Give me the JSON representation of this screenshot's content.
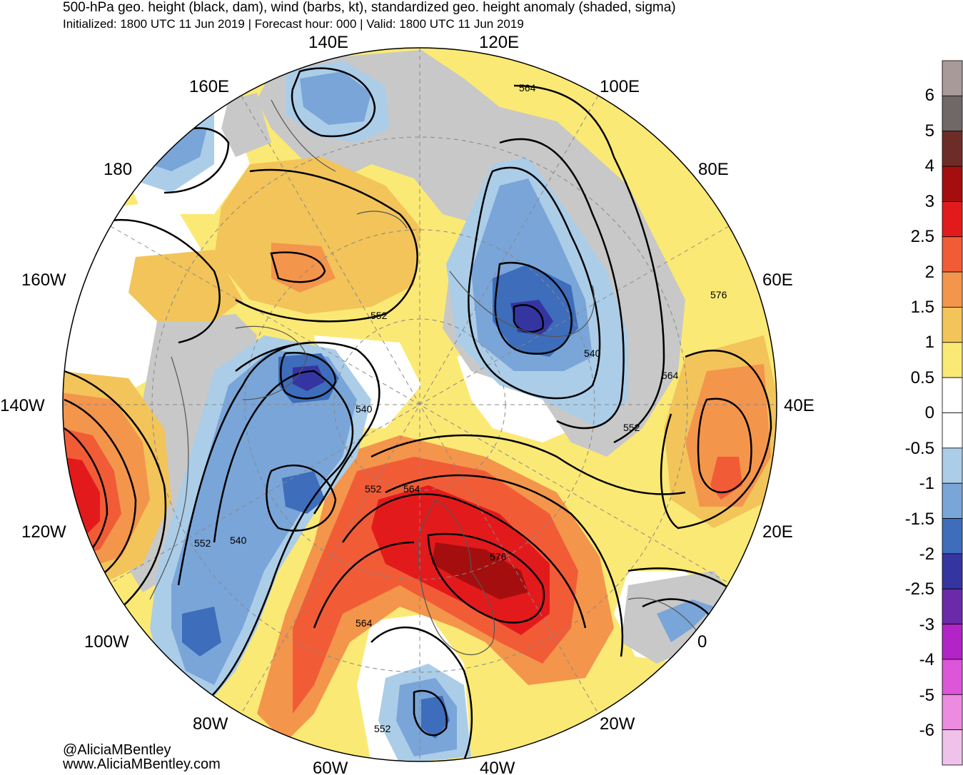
{
  "header": {
    "title": "500-hPa geo. height (black, dam), wind (barbs, kt), standardized geo. height anomaly (shaded, sigma)",
    "subtitle": "Initialized: 1800 UTC 11 Jun 2019 | Forecast hour: 000 | Valid: 1800 UTC 11 Jun 2019"
  },
  "map": {
    "projection": "north polar stereographic",
    "longitude_labels": [
      "140E",
      "120E",
      "100E",
      "160E",
      "80E",
      "180",
      "160W",
      "60E",
      "140W",
      "40E",
      "120W",
      "20E",
      "100W",
      "0",
      "80W",
      "20W",
      "60W",
      "40W"
    ],
    "contour_labels": [
      "564",
      "552",
      "540",
      "576",
      "564",
      "552",
      "540",
      "552",
      "564",
      "552",
      "540",
      "576",
      "564",
      "552"
    ],
    "colors": {
      "land": "#c8c8c8",
      "coast": "#555555",
      "contour": "#000000"
    }
  },
  "colorbar": {
    "labels": [
      "6",
      "5",
      "4",
      "3",
      "2.5",
      "2",
      "1.5",
      "1",
      "0.5",
      "0",
      "-0.5",
      "-1",
      "-1.5",
      "-2",
      "-2.5",
      "-3",
      "-4",
      "-5",
      "-6"
    ],
    "colors": [
      "#a89a98",
      "#706866",
      "#6e2c28",
      "#a50e0e",
      "#e31a1c",
      "#f15c37",
      "#f4954c",
      "#f2c45a",
      "#fbe975",
      "#ffffff",
      "#ffffff",
      "#abcde8",
      "#7aa5d8",
      "#3d6dbb",
      "#3535a2",
      "#6b2aa8",
      "#b224c8",
      "#dd55d8",
      "#ec8be0",
      "#f0c2eb"
    ]
  },
  "credits": {
    "handle": "@AliciaMBentley",
    "website": "www.AliciaMBentley.com"
  }
}
